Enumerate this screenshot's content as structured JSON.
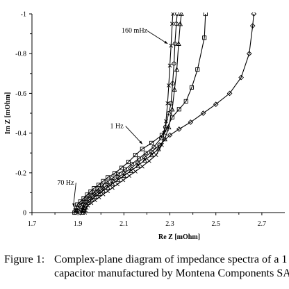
{
  "chart_data": {
    "type": "scatter",
    "title": "",
    "xlabel": "Re Z [mOhm]",
    "ylabel": "Im Z [mOhm]",
    "xlim": [
      1.7,
      2.8
    ],
    "ylim": [
      0,
      -1
    ],
    "y_inverted": true,
    "x_ticks": [
      "1.7",
      "1.9",
      "2.1",
      "2.3",
      "2.5",
      "2.7"
    ],
    "y_ticks": [
      "-1",
      "-0.8",
      "-0.6",
      "-0.4",
      "-0.2",
      "0"
    ],
    "grid": false,
    "legend": "none",
    "annotations": [
      {
        "text": "160 mHz",
        "x": 2.09,
        "y": -0.905,
        "arrow_to": [
          2.29,
          -0.85
        ]
      },
      {
        "text": "1 Hz",
        "x": 2.04,
        "y": -0.425,
        "arrow_to": [
          2.18,
          -0.345
        ]
      },
      {
        "text": "70 Hz",
        "x": 1.81,
        "y": -0.14,
        "arrow_to": [
          1.88,
          -0.03
        ]
      }
    ],
    "series": [
      {
        "marker": "square",
        "values": [
          [
            1.885,
            0.0
          ],
          [
            1.89,
            -0.012
          ],
          [
            1.893,
            -0.025
          ],
          [
            1.897,
            -0.04
          ],
          [
            1.91,
            -0.055
          ],
          [
            1.925,
            -0.072
          ],
          [
            1.94,
            -0.09
          ],
          [
            1.955,
            -0.106
          ],
          [
            1.97,
            -0.122
          ],
          [
            1.99,
            -0.14
          ],
          [
            2.01,
            -0.158
          ],
          [
            2.03,
            -0.177
          ],
          [
            2.06,
            -0.198
          ],
          [
            2.09,
            -0.225
          ],
          [
            2.12,
            -0.255
          ],
          [
            2.15,
            -0.29
          ],
          [
            2.18,
            -0.32
          ],
          [
            2.22,
            -0.35
          ],
          [
            2.265,
            -0.39
          ],
          [
            2.285,
            -0.42
          ],
          [
            2.31,
            -0.48
          ],
          [
            2.34,
            -0.52
          ],
          [
            2.37,
            -0.56
          ],
          [
            2.395,
            -0.63
          ],
          [
            2.42,
            -0.72
          ],
          [
            2.45,
            -0.88
          ],
          [
            2.455,
            -1.0
          ]
        ]
      },
      {
        "marker": "diamond",
        "values": [
          [
            1.91,
            0.0
          ],
          [
            1.915,
            -0.012
          ],
          [
            1.918,
            -0.025
          ],
          [
            1.924,
            -0.04
          ],
          [
            1.94,
            -0.055
          ],
          [
            1.955,
            -0.072
          ],
          [
            1.972,
            -0.09
          ],
          [
            1.99,
            -0.106
          ],
          [
            2.008,
            -0.122
          ],
          [
            2.03,
            -0.14
          ],
          [
            2.052,
            -0.158
          ],
          [
            2.075,
            -0.177
          ],
          [
            2.1,
            -0.198
          ],
          [
            2.13,
            -0.222
          ],
          [
            2.16,
            -0.25
          ],
          [
            2.19,
            -0.278
          ],
          [
            2.22,
            -0.305
          ],
          [
            2.255,
            -0.34
          ],
          [
            2.3,
            -0.39
          ],
          [
            2.34,
            -0.42
          ],
          [
            2.39,
            -0.455
          ],
          [
            2.445,
            -0.5
          ],
          [
            2.5,
            -0.545
          ],
          [
            2.56,
            -0.6
          ],
          [
            2.61,
            -0.68
          ],
          [
            2.645,
            -0.8
          ],
          [
            2.66,
            -0.94
          ],
          [
            2.665,
            -1.0
          ]
        ]
      },
      {
        "marker": "triangle",
        "values": [
          [
            1.92,
            0.0
          ],
          [
            1.923,
            -0.012
          ],
          [
            1.926,
            -0.024
          ],
          [
            1.93,
            -0.037
          ],
          [
            1.945,
            -0.05
          ],
          [
            1.96,
            -0.065
          ],
          [
            1.975,
            -0.08
          ],
          [
            1.993,
            -0.095
          ],
          [
            2.01,
            -0.11
          ],
          [
            2.03,
            -0.127
          ],
          [
            2.05,
            -0.145
          ],
          [
            2.075,
            -0.165
          ],
          [
            2.1,
            -0.185
          ],
          [
            2.13,
            -0.21
          ],
          [
            2.16,
            -0.235
          ],
          [
            2.19,
            -0.263
          ],
          [
            2.22,
            -0.29
          ],
          [
            2.25,
            -0.32
          ],
          [
            2.278,
            -0.37
          ],
          [
            2.295,
            -0.43
          ],
          [
            2.31,
            -0.52
          ],
          [
            2.32,
            -0.62
          ],
          [
            2.33,
            -0.72
          ],
          [
            2.338,
            -0.85
          ],
          [
            2.345,
            -0.95
          ],
          [
            2.35,
            -1.0
          ]
        ]
      },
      {
        "marker": "circle",
        "values": [
          [
            1.89,
            0.0
          ],
          [
            1.895,
            -0.012
          ],
          [
            1.9,
            -0.024
          ],
          [
            1.905,
            -0.037
          ],
          [
            1.92,
            -0.052
          ],
          [
            1.935,
            -0.068
          ],
          [
            1.95,
            -0.084
          ],
          [
            1.968,
            -0.1
          ],
          [
            1.985,
            -0.117
          ],
          [
            2.005,
            -0.135
          ],
          [
            2.025,
            -0.153
          ],
          [
            2.05,
            -0.173
          ],
          [
            2.075,
            -0.194
          ],
          [
            2.105,
            -0.218
          ],
          [
            2.135,
            -0.245
          ],
          [
            2.165,
            -0.272
          ],
          [
            2.195,
            -0.3
          ],
          [
            2.23,
            -0.33
          ],
          [
            2.262,
            -0.375
          ],
          [
            2.28,
            -0.43
          ],
          [
            2.295,
            -0.5
          ],
          [
            2.305,
            -0.55
          ],
          [
            2.312,
            -0.65
          ],
          [
            2.318,
            -0.75
          ],
          [
            2.322,
            -0.85
          ],
          [
            2.328,
            -0.95
          ],
          [
            2.332,
            -1.0
          ]
        ]
      },
      {
        "marker": "cross",
        "values": [
          [
            1.93,
            0.0
          ],
          [
            1.933,
            -0.012
          ],
          [
            1.937,
            -0.024
          ],
          [
            1.943,
            -0.036
          ],
          [
            1.958,
            -0.048
          ],
          [
            1.975,
            -0.062
          ],
          [
            1.992,
            -0.077
          ],
          [
            2.01,
            -0.092
          ],
          [
            2.03,
            -0.108
          ],
          [
            2.05,
            -0.125
          ],
          [
            2.072,
            -0.143
          ],
          [
            2.097,
            -0.163
          ],
          [
            2.123,
            -0.185
          ],
          [
            2.15,
            -0.207
          ],
          [
            2.18,
            -0.232
          ],
          [
            2.21,
            -0.26
          ],
          [
            2.24,
            -0.29
          ],
          [
            2.265,
            -0.34
          ],
          [
            2.275,
            -0.4
          ],
          [
            2.283,
            -0.46
          ],
          [
            2.29,
            -0.55
          ],
          [
            2.295,
            -0.64
          ],
          [
            2.3,
            -0.74
          ],
          [
            2.305,
            -0.84
          ],
          [
            2.31,
            -0.95
          ],
          [
            2.313,
            -1.0
          ]
        ]
      }
    ]
  },
  "caption": {
    "label": "Figure 1:",
    "line1": "Complex-plane diagram of impedance spectra of a 1",
    "line2": "capacitor manufactured by Montena Components SA"
  }
}
